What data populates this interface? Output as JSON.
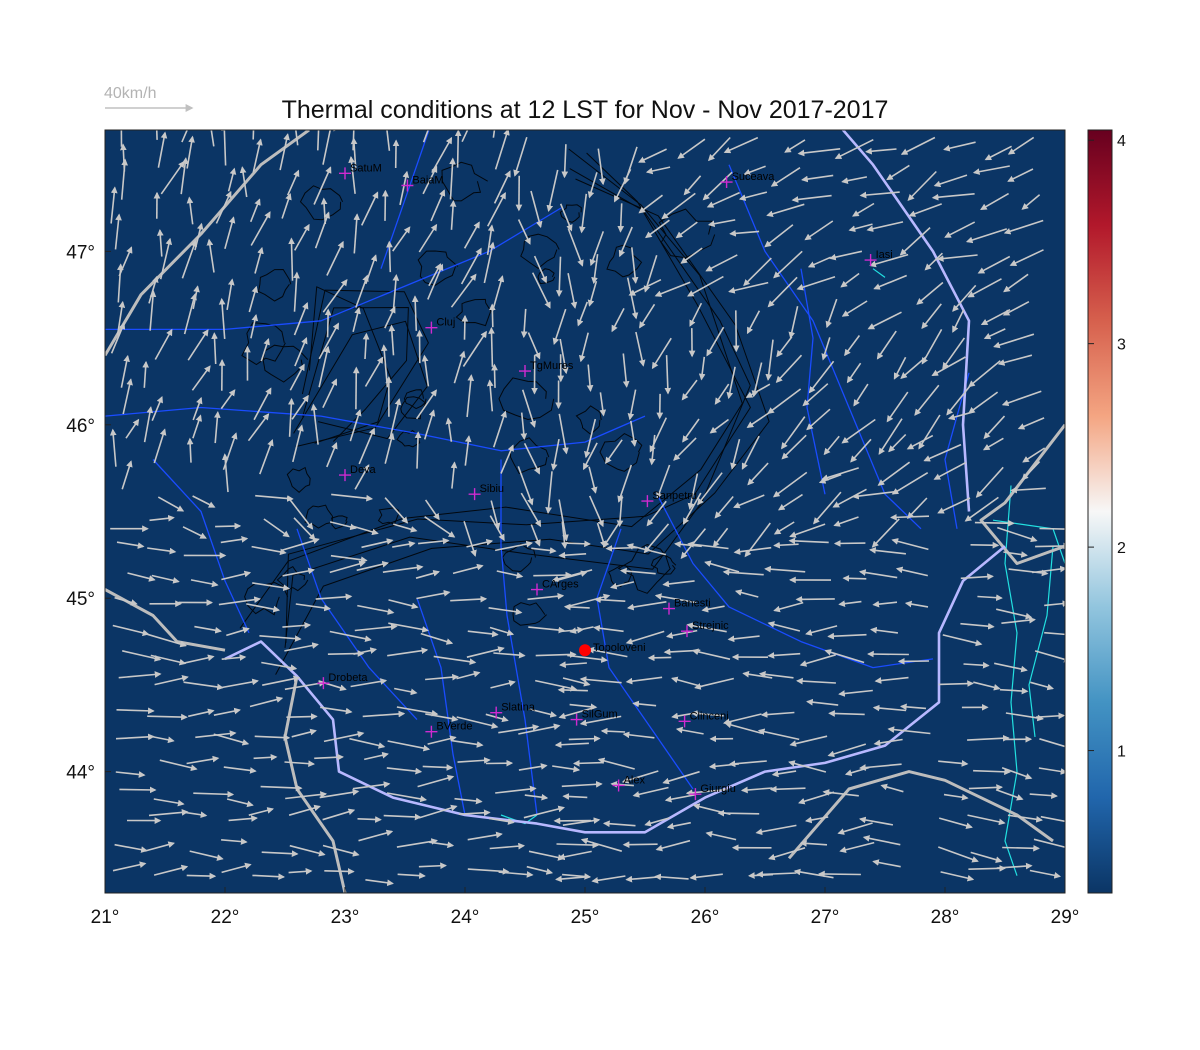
{
  "title": "Thermal conditions at 12 LST for Nov - Nov  2017-2017",
  "scale_label": "40km/h",
  "map": {
    "lon_range": [
      21,
      29
    ],
    "lat_range": [
      43.3,
      47.7
    ],
    "background_color": "#0b3565",
    "x_ticks": [
      "21°",
      "22°",
      "23°",
      "24°",
      "25°",
      "26°",
      "27°",
      "28°",
      "29°"
    ],
    "y_ticks": [
      "47°",
      "46°",
      "45°",
      "44°"
    ]
  },
  "colorbar": {
    "ticks": [
      "4",
      "3",
      "2",
      "1"
    ],
    "range": [
      0.3,
      4.05
    ],
    "colors": [
      "#0b3565",
      "#2166ac",
      "#4393c3",
      "#92c5de",
      "#f7f7f7",
      "#f4a582",
      "#d6604d",
      "#b2182b",
      "#67001f"
    ]
  },
  "station": {
    "name": "Topoloveni",
    "lon": 25.0,
    "lat": 44.7,
    "color": "#ff0000"
  },
  "cities": [
    {
      "name": "SatuM",
      "lon": 23.0,
      "lat": 47.45
    },
    {
      "name": "BaiaM",
      "lon": 23.52,
      "lat": 47.38
    },
    {
      "name": "Suceava",
      "lon": 26.18,
      "lat": 47.4
    },
    {
      "name": "Iasi",
      "lon": 27.38,
      "lat": 46.95
    },
    {
      "name": "Cluj",
      "lon": 23.72,
      "lat": 46.56
    },
    {
      "name": "TgMures",
      "lon": 24.5,
      "lat": 46.31
    },
    {
      "name": "Deva",
      "lon": 23.0,
      "lat": 45.71
    },
    {
      "name": "Sibiu",
      "lon": 24.08,
      "lat": 45.6
    },
    {
      "name": "Sanpetru",
      "lon": 25.52,
      "lat": 45.56
    },
    {
      "name": "CArges",
      "lon": 24.6,
      "lat": 45.05
    },
    {
      "name": "Banesti",
      "lon": 25.7,
      "lat": 44.94
    },
    {
      "name": "Strejnic",
      "lon": 25.85,
      "lat": 44.81
    },
    {
      "name": "Drobeta",
      "lon": 22.82,
      "lat": 44.51
    },
    {
      "name": "Slatina",
      "lon": 24.26,
      "lat": 44.34
    },
    {
      "name": "SilGum",
      "lon": 24.93,
      "lat": 44.3
    },
    {
      "name": "BVerde",
      "lon": 23.72,
      "lat": 44.23
    },
    {
      "name": "Clinceni",
      "lon": 25.83,
      "lat": 44.29
    },
    {
      "name": "Alex",
      "lon": 25.28,
      "lat": 43.92
    },
    {
      "name": "Giurgiu",
      "lon": 25.92,
      "lat": 43.87
    }
  ]
}
